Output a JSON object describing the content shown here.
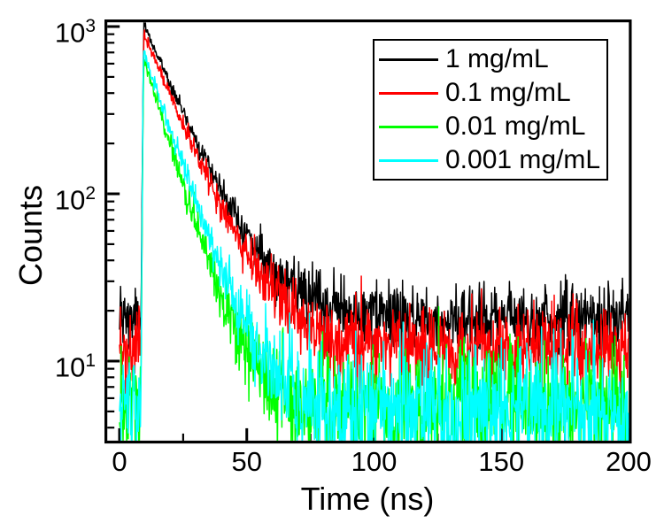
{
  "chart_data": {
    "type": "line",
    "title": "",
    "xlabel": "Time (ns)",
    "ylabel": "Counts",
    "x_axis": {
      "range": [
        -6,
        201
      ],
      "major_ticks": [
        0,
        50,
        100,
        150,
        200
      ],
      "minor_ticks": [
        25,
        75,
        125,
        175
      ]
    },
    "y_axis": {
      "scale": "log",
      "range": [
        3.3,
        1100
      ],
      "major_ticks": [
        {
          "value": 10,
          "base": "10",
          "exp": "1"
        },
        {
          "value": 100,
          "base": "10",
          "exp": "2"
        },
        {
          "value": 1000,
          "base": "10",
          "exp": "3"
        }
      ]
    },
    "legend": {
      "position": "top-right",
      "border": true
    },
    "axis_color": "#000000",
    "series": [
      {
        "name": "1 mg/mL",
        "color": "#000000",
        "background_counts": 18,
        "peak_counts": 1000,
        "rise_peak_counts": 1000,
        "lifetime_ns": 12.5,
        "rise_start_ns": 8.3,
        "peak_time_ns": 9.6
      },
      {
        "name": "0.1 mg/mL",
        "color": "#ff0000",
        "background_counts": 12,
        "peak_counts": 880,
        "rise_peak_counts": 880,
        "lifetime_ns": 12.2,
        "rise_start_ns": 8.35,
        "peak_time_ns": 9.6
      },
      {
        "name": "0.01 mg/mL",
        "color": "#00ff00",
        "background_counts": 5.5,
        "peak_counts": 640,
        "rise_peak_counts": 640,
        "lifetime_ns": 8.7,
        "rise_start_ns": 8.3,
        "peak_time_ns": 9.55
      },
      {
        "name": "0.001 mg/mL",
        "color": "#00ffff",
        "background_counts": 5.0,
        "peak_counts": 690,
        "rise_peak_counts": 950,
        "lifetime_ns": 9.8,
        "rise_start_ns": 8.4,
        "peak_time_ns": 9.55
      }
    ],
    "time_range_ns": [
      0,
      201
    ],
    "sample_step_ns": 0.2
  }
}
